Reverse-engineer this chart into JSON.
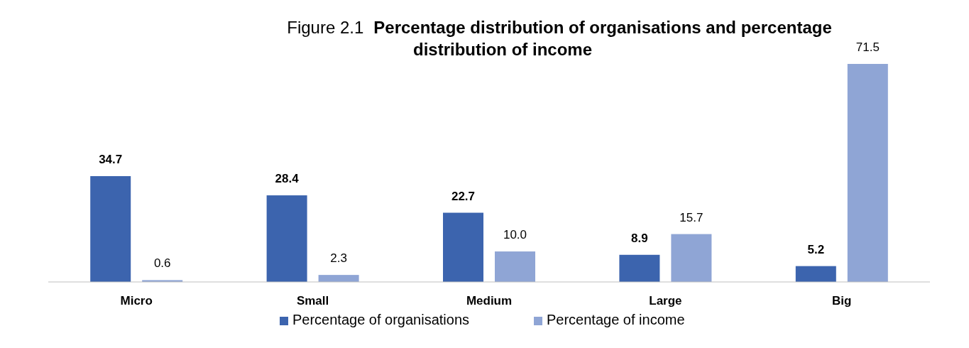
{
  "chart_data": {
    "type": "bar",
    "title": "Figure 2.1 Percentage distribution of organisations and percentage distribution of income",
    "categories": [
      "Micro",
      "Small",
      "Medium",
      "Large",
      "Big"
    ],
    "series": [
      {
        "name": "Percentage of organisations",
        "color": "#3c64ae",
        "values": [
          34.7,
          28.4,
          22.7,
          8.9,
          5.2
        ],
        "value_labels": [
          "34.7",
          "28.4",
          "22.7",
          "8.9",
          "5.2"
        ]
      },
      {
        "name": "Percentage of income",
        "color": "#8fa5d5",
        "values": [
          0.6,
          2.3,
          10.0,
          15.7,
          71.5
        ],
        "value_labels": [
          "0.6",
          "2.3",
          "10.0",
          "15.7",
          "71.5"
        ]
      }
    ],
    "legend": "bottom",
    "grid": false
  }
}
